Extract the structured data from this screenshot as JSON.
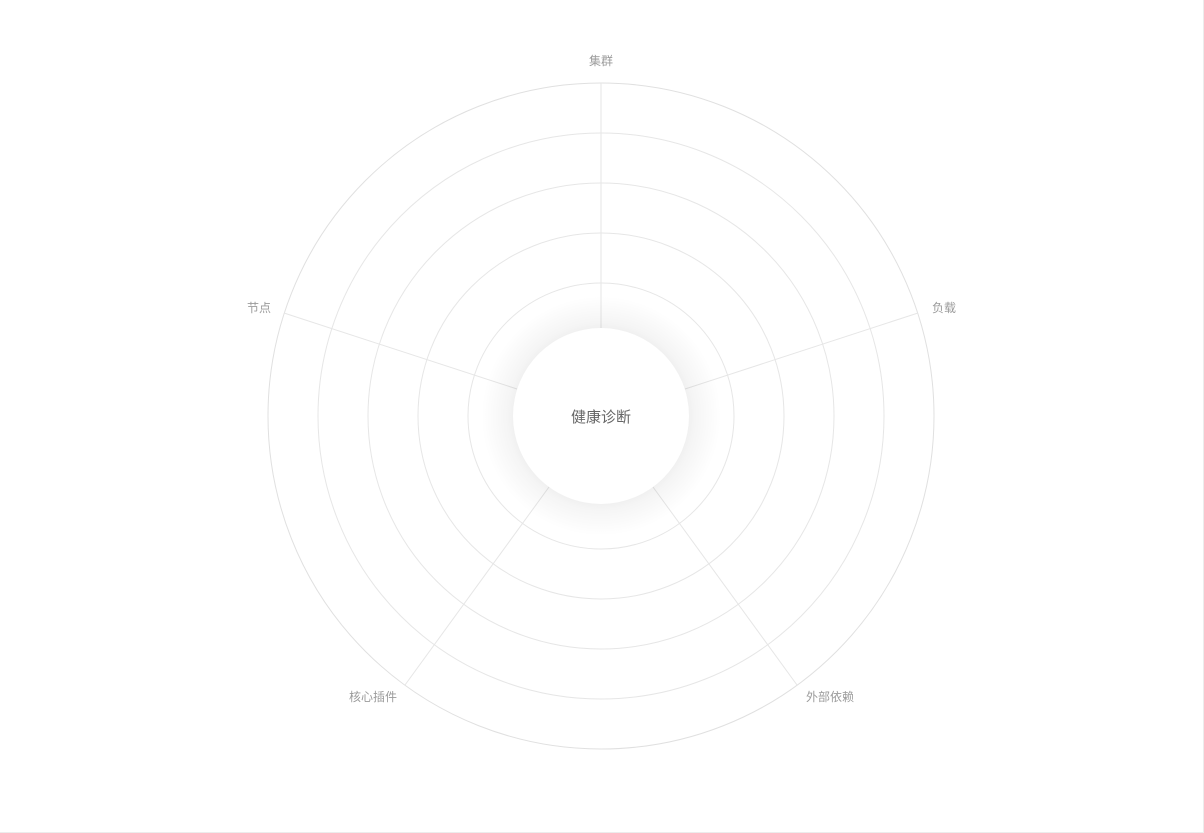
{
  "center": {
    "label": "健康诊断"
  },
  "dimensions": [
    {
      "label": "集群"
    },
    {
      "label": "负载"
    },
    {
      "label": "外部依赖"
    },
    {
      "label": "核心插件"
    },
    {
      "label": "节点"
    }
  ],
  "colors": {
    "background": "#ffffff",
    "gridline": "#e6e6e6",
    "axis_label": "#9b9b9b",
    "center_label": "#666666"
  }
}
